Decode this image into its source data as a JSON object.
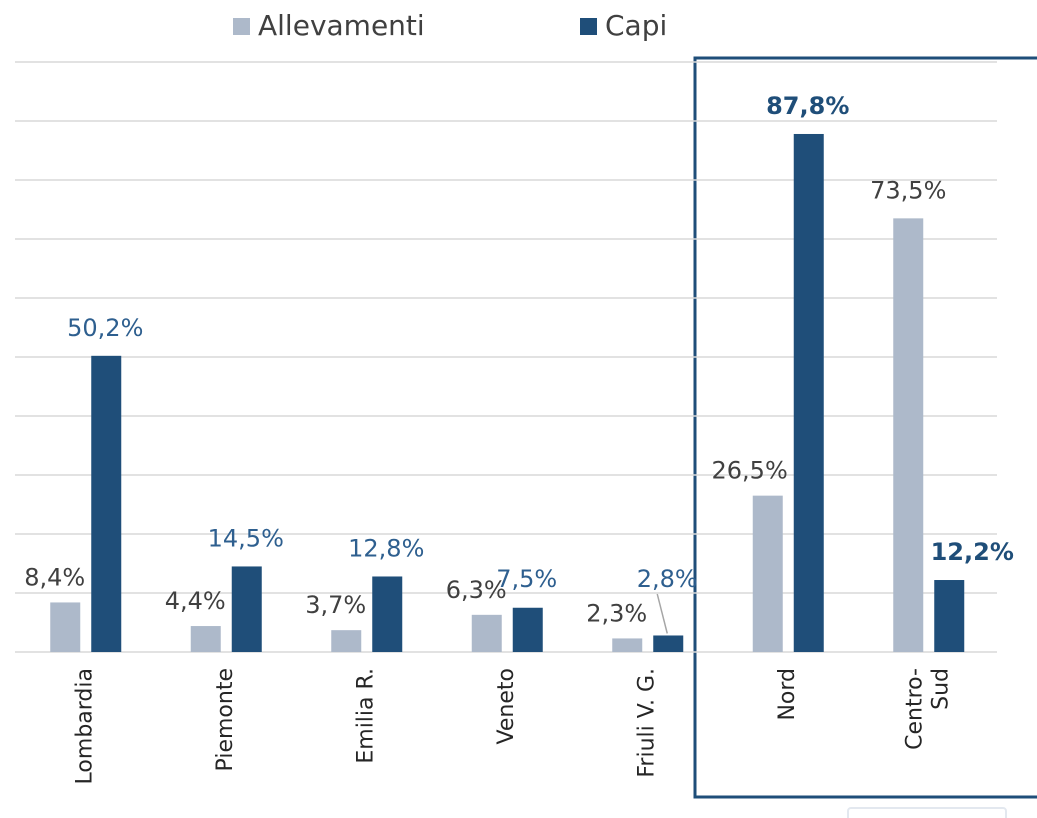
{
  "chart_data": {
    "type": "bar",
    "categories": [
      "Lombardia",
      "Piemonte",
      "Emilia R.",
      "Veneto",
      "Friuli V. G.",
      "Nord",
      "Centro-\nSud"
    ],
    "series": [
      {
        "name": "Allevamenti",
        "color": "#adb9ca",
        "values": [
          8.4,
          4.4,
          3.7,
          6.3,
          2.3,
          26.5,
          73.5
        ],
        "value_labels": [
          "8,4%",
          "4,4%",
          "3,7%",
          "6,3%",
          "2,3%",
          "26,5%",
          "73,5%"
        ]
      },
      {
        "name": "Capi",
        "color": "#1f4e79",
        "values": [
          50.2,
          14.5,
          12.8,
          7.5,
          2.8,
          87.8,
          12.2
        ],
        "value_labels": [
          "50,2%",
          "14,5%",
          "12,8%",
          "7,5%",
          "2,8%",
          "87,8%",
          "12,2%"
        ]
      }
    ],
    "ylim": [
      0,
      100
    ],
    "yticks": [
      0,
      10,
      20,
      30,
      40,
      50,
      60,
      70,
      80,
      90,
      100
    ],
    "grid": true
  }
}
